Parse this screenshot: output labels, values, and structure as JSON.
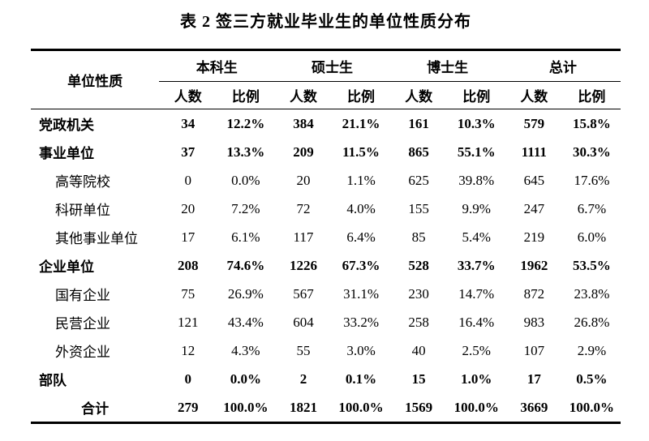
{
  "title": "表 2 签三方就业毕业生的单位性质分布",
  "table": {
    "corner_header": "单位性质",
    "groups": [
      {
        "label": "本科生"
      },
      {
        "label": "硕士生"
      },
      {
        "label": "博士生"
      },
      {
        "label": "总计"
      }
    ],
    "sub_headers": [
      "人数",
      "比例"
    ],
    "rows": [
      {
        "label": "党政机关",
        "level": "main",
        "values": [
          "34",
          "12.2%",
          "384",
          "21.1%",
          "161",
          "10.3%",
          "579",
          "15.8%"
        ]
      },
      {
        "label": "事业单位",
        "level": "main",
        "values": [
          "37",
          "13.3%",
          "209",
          "11.5%",
          "865",
          "55.1%",
          "1111",
          "30.3%"
        ]
      },
      {
        "label": "高等院校",
        "level": "sub",
        "values": [
          "0",
          "0.0%",
          "20",
          "1.1%",
          "625",
          "39.8%",
          "645",
          "17.6%"
        ]
      },
      {
        "label": "科研单位",
        "level": "sub",
        "values": [
          "20",
          "7.2%",
          "72",
          "4.0%",
          "155",
          "9.9%",
          "247",
          "6.7%"
        ]
      },
      {
        "label": "其他事业单位",
        "level": "sub",
        "values": [
          "17",
          "6.1%",
          "117",
          "6.4%",
          "85",
          "5.4%",
          "219",
          "6.0%"
        ]
      },
      {
        "label": "企业单位",
        "level": "main",
        "values": [
          "208",
          "74.6%",
          "1226",
          "67.3%",
          "528",
          "33.7%",
          "1962",
          "53.5%"
        ]
      },
      {
        "label": "国有企业",
        "level": "sub",
        "values": [
          "75",
          "26.9%",
          "567",
          "31.1%",
          "230",
          "14.7%",
          "872",
          "23.8%"
        ]
      },
      {
        "label": "民营企业",
        "level": "sub",
        "values": [
          "121",
          "43.4%",
          "604",
          "33.2%",
          "258",
          "16.4%",
          "983",
          "26.8%"
        ]
      },
      {
        "label": "外资企业",
        "level": "sub",
        "values": [
          "12",
          "4.3%",
          "55",
          "3.0%",
          "40",
          "2.5%",
          "107",
          "2.9%"
        ]
      },
      {
        "label": "部队",
        "level": "main",
        "values": [
          "0",
          "0.0%",
          "2",
          "0.1%",
          "15",
          "1.0%",
          "17",
          "0.5%"
        ]
      },
      {
        "label": "合计",
        "level": "total",
        "values": [
          "279",
          "100.0%",
          "1821",
          "100.0%",
          "1569",
          "100.0%",
          "3669",
          "100.0%"
        ]
      }
    ],
    "text_color": "#000000",
    "background_color": "#ffffff"
  }
}
